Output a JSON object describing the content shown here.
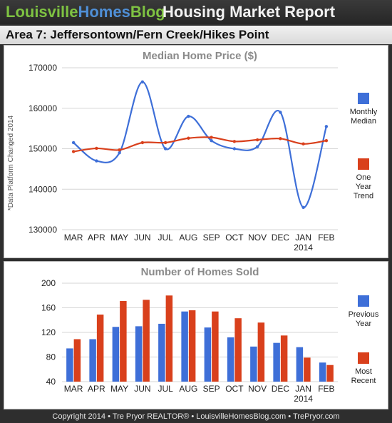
{
  "header": {
    "logo_part1": "Louisville",
    "logo_part2": "Homes",
    "logo_part3": "Blog",
    "title": "Housing Market Report"
  },
  "area_title": "Area 7: Jeffersontown/Fern Creek/Hikes Point",
  "footer": "Copyright 2014 • Tre Pryor REALTOR® • LouisvilleHomesBlog.com • TrePryor.com",
  "colors": {
    "blue": "#3e6fd8",
    "red": "#d9401c"
  },
  "chart_data": [
    {
      "type": "line",
      "title": "Median Home Price ($)",
      "ylabel": "*Data Platform Changed 2014",
      "categories": [
        "MAR",
        "APR",
        "MAY",
        "JUN",
        "JUL",
        "AUG",
        "SEP",
        "OCT",
        "NOV",
        "DEC",
        "JAN",
        "FEB"
      ],
      "year_label": "2014",
      "yticks": [
        "170000",
        "160000",
        "150000",
        "140000",
        "130000"
      ],
      "ylim": [
        130000,
        170000
      ],
      "legend": [
        "Monthly Median",
        "One Year Trend"
      ],
      "series": [
        {
          "name": "Monthly Median",
          "values": [
            151500,
            147000,
            149000,
            166500,
            150000,
            158000,
            152000,
            150000,
            150500,
            159000,
            135500,
            155500
          ]
        },
        {
          "name": "One Year Trend",
          "values": [
            149300,
            150100,
            149700,
            151500,
            151500,
            152600,
            152800,
            151800,
            152200,
            152500,
            151200,
            152000
          ]
        }
      ]
    },
    {
      "type": "bar",
      "title": "Number of Homes Sold",
      "categories": [
        "MAR",
        "APR",
        "MAY",
        "JUN",
        "JUL",
        "AUG",
        "SEP",
        "OCT",
        "NOV",
        "DEC",
        "JAN",
        "FEB"
      ],
      "year_label": "2014",
      "yticks": [
        "200",
        "160",
        "120",
        "80",
        "40"
      ],
      "ylim": [
        40,
        200
      ],
      "legend": [
        "Previous Year",
        "Most Recent"
      ],
      "series": [
        {
          "name": "Previous Year",
          "values": [
            94,
            109,
            129,
            130,
            134,
            154,
            128,
            112,
            97,
            103,
            96,
            71
          ]
        },
        {
          "name": "Most Recent",
          "values": [
            109,
            149,
            171,
            173,
            180,
            156,
            154,
            143,
            136,
            115,
            79,
            67
          ]
        }
      ]
    }
  ]
}
